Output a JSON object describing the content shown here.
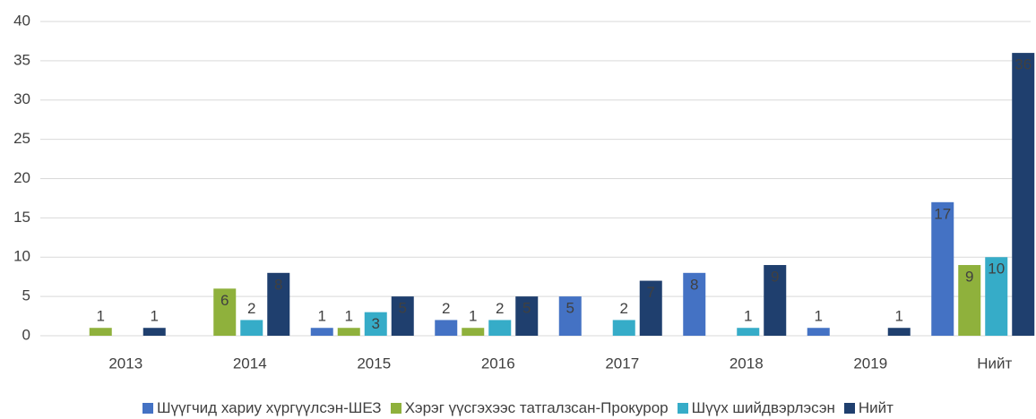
{
  "chart_data": {
    "type": "bar",
    "categories": [
      "2013",
      "2014",
      "2015",
      "2016",
      "2017",
      "2018",
      "2019",
      "Нийт"
    ],
    "series": [
      {
        "name": "Шүүгчид хариу хүргүүлсэн-ШЕЗ",
        "color": "#4472c4",
        "values": [
          null,
          null,
          1,
          2,
          5,
          8,
          1,
          17
        ]
      },
      {
        "name": "Хэрэг үүсгэхээс татгалзсан-Прокурор",
        "color": "#8fb13c",
        "values": [
          1,
          6,
          1,
          1,
          null,
          null,
          null,
          9
        ]
      },
      {
        "name": "Шүүх шийдвэрлэсэн",
        "color": "#36acc8",
        "values": [
          null,
          2,
          3,
          2,
          2,
          1,
          null,
          10
        ]
      },
      {
        "name": "Нийт",
        "color": "#1f3f6e",
        "values": [
          1,
          8,
          5,
          5,
          7,
          9,
          1,
          36
        ]
      }
    ],
    "ylim": [
      0,
      40
    ],
    "yticks": [
      0,
      5,
      10,
      15,
      20,
      25,
      30,
      35,
      40
    ],
    "grid": true,
    "legend": "bottom"
  }
}
